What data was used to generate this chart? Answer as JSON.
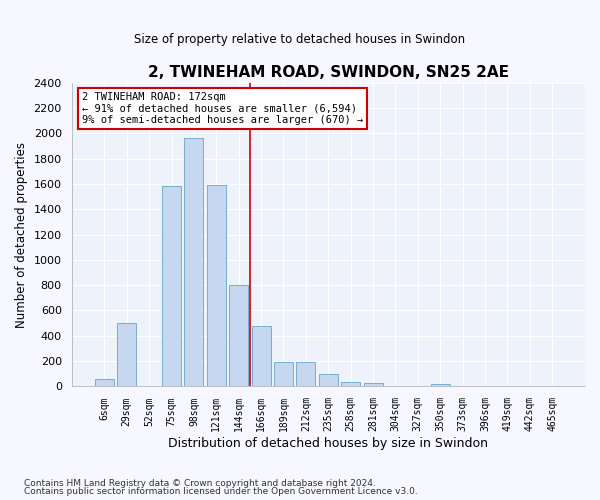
{
  "title": "2, TWINEHAM ROAD, SWINDON, SN25 2AE",
  "subtitle": "Size of property relative to detached houses in Swindon",
  "xlabel": "Distribution of detached houses by size in Swindon",
  "ylabel": "Number of detached properties",
  "bar_color": "#c5d8f0",
  "bar_edge_color": "#7aadd4",
  "background_color": "#eef2fa",
  "grid_color": "#ffffff",
  "categories": [
    "6sqm",
    "29sqm",
    "52sqm",
    "75sqm",
    "98sqm",
    "121sqm",
    "144sqm",
    "166sqm",
    "189sqm",
    "212sqm",
    "235sqm",
    "258sqm",
    "281sqm",
    "304sqm",
    "327sqm",
    "350sqm",
    "373sqm",
    "396sqm",
    "419sqm",
    "442sqm",
    "465sqm"
  ],
  "values": [
    60,
    500,
    0,
    1580,
    1960,
    1590,
    800,
    475,
    195,
    195,
    95,
    35,
    30,
    0,
    0,
    20,
    0,
    0,
    0,
    0,
    0
  ],
  "vline_color": "#cc0000",
  "annotation_title": "2 TWINEHAM ROAD: 172sqm",
  "annotation_line1": "← 91% of detached houses are smaller (6,594)",
  "annotation_line2": "9% of semi-detached houses are larger (670) →",
  "annotation_box_color": "#cc0000",
  "ylim": [
    0,
    2400
  ],
  "yticks": [
    0,
    200,
    400,
    600,
    800,
    1000,
    1200,
    1400,
    1600,
    1800,
    2000,
    2200,
    2400
  ],
  "footer1": "Contains HM Land Registry data © Crown copyright and database right 2024.",
  "footer2": "Contains public sector information licensed under the Open Government Licence v3.0.",
  "fig_width": 6.0,
  "fig_height": 5.0,
  "dpi": 100
}
